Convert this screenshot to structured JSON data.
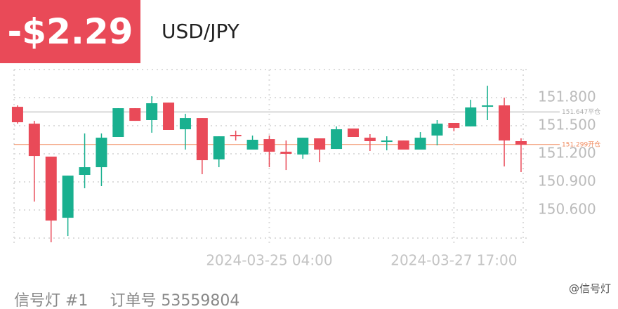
{
  "header": {
    "pnl": "-$2.29",
    "symbol": "USD/JPY"
  },
  "footer": {
    "signal": "信号灯 #1",
    "order": "订单号 53559804"
  },
  "watermark": "@信号灯",
  "chart_data": {
    "type": "candlestick",
    "categories": [
      null,
      null,
      null,
      null,
      null,
      null,
      null,
      null,
      null,
      null,
      null,
      null,
      null,
      null,
      null,
      "2024-03-25 04:00",
      null,
      null,
      null,
      null,
      null,
      null,
      null,
      null,
      null,
      null,
      "2024-03-27 17:00",
      null,
      null,
      null,
      null
    ],
    "open": [
      151.702,
      151.522,
      151.17,
      150.517,
      150.975,
      151.057,
      151.38,
      151.687,
      151.56,
      151.747,
      151.462,
      151.582,
      151.14,
      151.402,
      151.245,
      151.357,
      151.222,
      151.192,
      151.365,
      151.252,
      151.47,
      151.372,
      151.327,
      151.342,
      151.245,
      151.395,
      151.53,
      151.492,
      151.702,
      151.717,
      151.335
    ],
    "high": [
      151.717,
      151.552,
      151.17,
      150.967,
      151.417,
      151.417,
      151.687,
      151.687,
      151.815,
      151.747,
      151.627,
      151.582,
      151.387,
      151.447,
      151.395,
      151.395,
      151.342,
      151.372,
      151.365,
      151.492,
      151.47,
      151.41,
      151.387,
      151.342,
      151.432,
      151.56,
      151.53,
      151.777,
      151.927,
      151.8,
      151.365
    ],
    "low": [
      151.522,
      150.69,
      150.255,
      150.322,
      150.832,
      150.855,
      151.38,
      151.552,
      151.425,
      151.455,
      151.245,
      150.982,
      151.057,
      151.342,
      151.245,
      151.057,
      151.027,
      151.147,
      151.11,
      151.252,
      151.38,
      151.23,
      151.237,
      151.245,
      151.245,
      151.29,
      151.44,
      151.492,
      151.56,
      151.065,
      151.005
    ],
    "close": [
      151.537,
      151.177,
      150.487,
      150.967,
      151.057,
      151.372,
      151.687,
      151.552,
      151.74,
      151.455,
      151.582,
      151.132,
      151.387,
      151.395,
      151.35,
      151.222,
      151.2,
      151.372,
      151.245,
      151.462,
      151.38,
      151.335,
      151.342,
      151.245,
      151.372,
      151.522,
      151.477,
      151.695,
      151.717,
      151.342,
      151.297
    ],
    "up_color": "#19b08f",
    "down_color": "#e94a58",
    "ylim": [
      150.3,
      152.1
    ],
    "yticks": [
      {
        "value": 150.6,
        "label": "150.600"
      },
      {
        "value": 150.9,
        "label": "150.900"
      },
      {
        "value": 151.2,
        "label": "151.200"
      },
      {
        "value": 151.5,
        "label": "151.500"
      },
      {
        "value": 151.8,
        "label": "151.800"
      }
    ],
    "grid": true,
    "reference_lines": [
      {
        "value": 151.647,
        "label": "151.647平仓",
        "color": "#aaaaaa"
      },
      {
        "value": 151.299,
        "label": "151.299开仓",
        "color": "#f08a5d"
      }
    ]
  }
}
